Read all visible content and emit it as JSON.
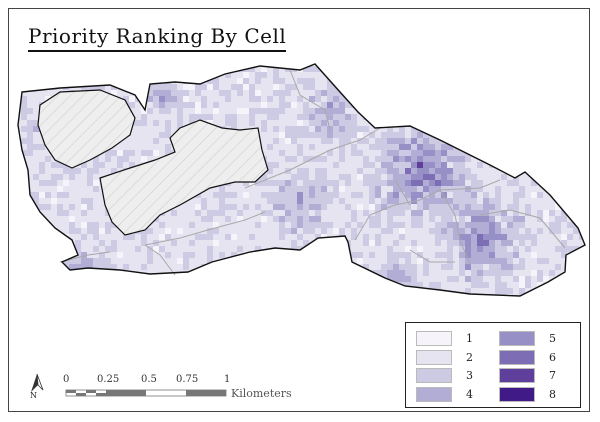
{
  "title": "Priority Ranking By Cell",
  "legend": {
    "items": [
      {
        "label": "1",
        "color": "#f6f4fa"
      },
      {
        "label": "2",
        "color": "#e6e4f1"
      },
      {
        "label": "3",
        "color": "#cdcae4"
      },
      {
        "label": "4",
        "color": "#b1add5"
      },
      {
        "label": "5",
        "color": "#9790c7"
      },
      {
        "label": "6",
        "color": "#7c6db4"
      },
      {
        "label": "7",
        "color": "#5e3f9c"
      },
      {
        "label": "8",
        "color": "#401a86"
      }
    ]
  },
  "scale_bar": {
    "ticks": [
      "0",
      "0.25",
      "0.5",
      "0.75",
      "1"
    ],
    "unit": "Kilometers"
  },
  "north_arrow": {
    "label": "N",
    "icon": "north-arrow-icon"
  },
  "colors": {
    "outline": "#111111",
    "hatch_fill": "#eeeeee",
    "hatch_line": "#cfcfcf",
    "internal_boundary": "#a9a9a9"
  }
}
